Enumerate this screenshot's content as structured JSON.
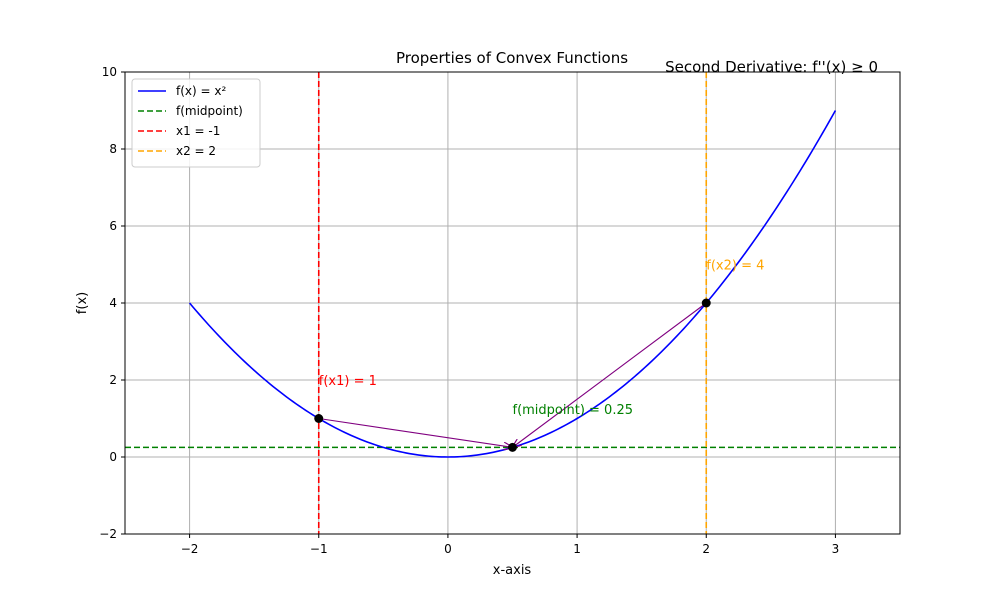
{
  "chart_data": {
    "type": "line",
    "title": "Properties of Convex Functions",
    "subtitle": "Second Derivative: f''(x) ≥ 0",
    "xlabel": "x-axis",
    "ylabel": "f(x)",
    "xlim": [
      -2.5,
      3.5
    ],
    "ylim": [
      -2,
      10
    ],
    "xticks": [
      -2,
      -1,
      0,
      1,
      2,
      3
    ],
    "yticks": [
      -2,
      0,
      2,
      4,
      6,
      8,
      10
    ],
    "xtick_labels": [
      "−2",
      "−1",
      "0",
      "1",
      "2",
      "3"
    ],
    "ytick_labels": [
      "−2",
      "0",
      "2",
      "4",
      "6",
      "8",
      "10"
    ],
    "grid": true,
    "legend_position": "top-left",
    "series": [
      {
        "name": "f(x) = x²",
        "style": "solid",
        "color": "#0000ff",
        "function": "x^2",
        "domain": [
          -2,
          3
        ]
      }
    ],
    "reference_lines": [
      {
        "name": "f(midpoint)",
        "orientation": "horizontal",
        "value": 0.25,
        "color": "#008000",
        "style": "dashed"
      },
      {
        "name": "x1 = -1",
        "orientation": "vertical",
        "value": -1,
        "color": "#ff0000",
        "style": "dashed"
      },
      {
        "name": "x2 = 2",
        "orientation": "vertical",
        "value": 2,
        "color": "#ffa500",
        "style": "dashed"
      }
    ],
    "points": [
      {
        "x": -1,
        "y": 1
      },
      {
        "x": 0.5,
        "y": 0.25
      },
      {
        "x": 2,
        "y": 4
      }
    ],
    "arrows": [
      {
        "from": [
          -1,
          1
        ],
        "to": [
          0.5,
          0.25
        ],
        "color": "#800080"
      },
      {
        "from": [
          2,
          4
        ],
        "to": [
          0.5,
          0.25
        ],
        "color": "#800080"
      }
    ],
    "annotations": [
      {
        "text": "f(x1) = 1",
        "x": -1,
        "y": 2,
        "color": "#ff0000"
      },
      {
        "text": "f(midpoint) = 0.25",
        "x": 0.5,
        "y": 1.25,
        "color": "#008000"
      },
      {
        "text": "f(x2) = 4",
        "x": 2,
        "y": 5,
        "color": "#ffa500"
      }
    ]
  }
}
